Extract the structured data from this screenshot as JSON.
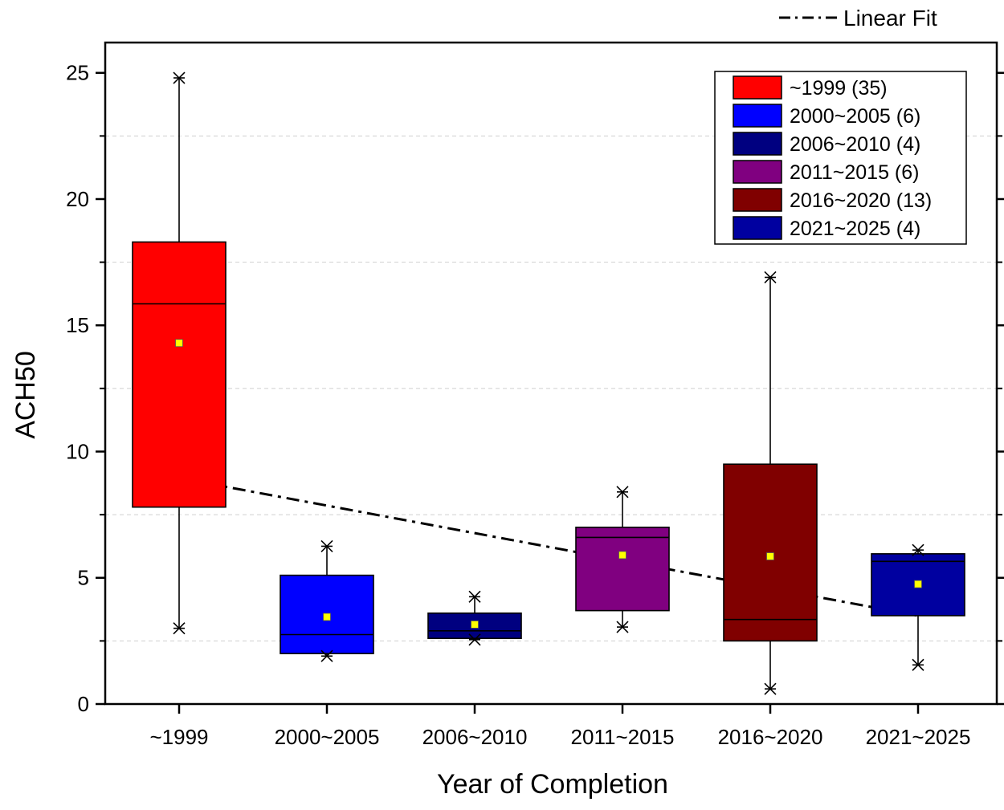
{
  "chart_data": {
    "type": "box",
    "xlabel": "Year of Completion",
    "ylabel": "ACH50",
    "ylim": [
      0,
      26
    ],
    "yticks": [
      0,
      5,
      10,
      15,
      20,
      25
    ],
    "y_minor_gridlines": [
      2.5,
      7.5,
      12.5,
      17.5,
      22.5
    ],
    "categories": [
      "~1999",
      "2000~2005",
      "2006~2010",
      "2011~2015",
      "2016~2020",
      "2021~2025"
    ],
    "series": [
      {
        "name": "~1999",
        "count": 35,
        "legend_label": "~1999 (35)",
        "color": "#FF0000",
        "min": 3.0,
        "q1": 7.8,
        "median": 15.85,
        "q3": 18.3,
        "max": 24.8,
        "mean": 14.3
      },
      {
        "name": "2000~2005",
        "count": 6,
        "legend_label": "2000~2005 (6)",
        "color": "#0000FF",
        "min": 1.9,
        "q1": 2.0,
        "median": 2.75,
        "q3": 5.1,
        "max": 6.25,
        "mean": 3.45
      },
      {
        "name": "2006~2010",
        "count": 4,
        "legend_label": "2006~2010 (4)",
        "color": "#000080",
        "min": 2.55,
        "q1": 2.6,
        "median": 2.9,
        "q3": 3.6,
        "max": 4.25,
        "mean": 3.15
      },
      {
        "name": "2011~2015",
        "count": 6,
        "legend_label": "2011~2015 (6)",
        "color": "#800080",
        "min": 3.05,
        "q1": 3.7,
        "median": 6.6,
        "q3": 7.0,
        "max": 8.4,
        "mean": 5.9
      },
      {
        "name": "2016~2020",
        "count": 13,
        "legend_label": "2016~2020 (13)",
        "color": "#800000",
        "min": 0.6,
        "q1": 2.5,
        "median": 3.35,
        "q3": 9.5,
        "max": 16.9,
        "mean": 5.85
      },
      {
        "name": "2021~2025",
        "count": 4,
        "legend_label": "2021~2025 (4)",
        "color": "#0000A0",
        "min": 1.55,
        "q1": 3.5,
        "median": 5.65,
        "q3": 5.95,
        "max": 6.1,
        "mean": 4.75
      }
    ],
    "linear_fit": {
      "label": "Linear Fit",
      "start": {
        "category": "~1999",
        "y": 8.95
      },
      "end": {
        "category": "2021~2025",
        "y": 3.5
      }
    },
    "legend_position": "top-right",
    "mean_marker_color": "#FFFF00"
  }
}
